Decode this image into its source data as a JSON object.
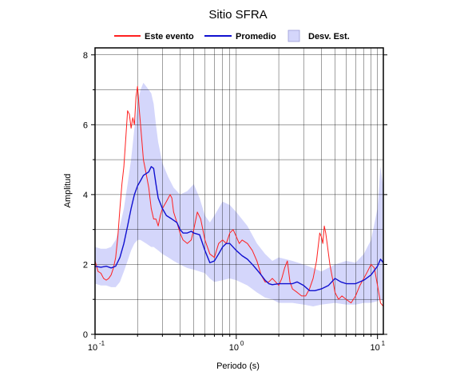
{
  "chart_data": {
    "type": "line",
    "title": "Sitio SFRA",
    "xlabel": "Periodo (s)",
    "ylabel": "Amplitud",
    "x_scale": "log",
    "xlim": [
      0.1,
      11
    ],
    "ylim": [
      0,
      8.2
    ],
    "x_ticks": [
      {
        "value": 0.1,
        "base": "10",
        "exp": "-1"
      },
      {
        "value": 1,
        "base": "10",
        "exp": "0"
      },
      {
        "value": 10,
        "base": "10",
        "exp": "1"
      }
    ],
    "y_ticks": [
      0,
      2,
      4,
      6,
      8
    ],
    "grid": true,
    "legend_position": "top",
    "legend": [
      "Este evento",
      "Promedio",
      "Desv. Est."
    ],
    "colors": {
      "event": "#ff2020",
      "mean": "#1010d0",
      "band": "#d4d6fb"
    },
    "series": [
      {
        "name": "Este evento",
        "x": [
          0.1,
          0.105,
          0.11,
          0.115,
          0.12,
          0.125,
          0.13,
          0.135,
          0.14,
          0.145,
          0.15,
          0.155,
          0.16,
          0.165,
          0.17,
          0.175,
          0.18,
          0.185,
          0.19,
          0.195,
          0.2,
          0.205,
          0.21,
          0.215,
          0.22,
          0.225,
          0.23,
          0.235,
          0.24,
          0.25,
          0.26,
          0.27,
          0.28,
          0.29,
          0.3,
          0.32,
          0.34,
          0.35,
          0.36,
          0.38,
          0.4,
          0.42,
          0.45,
          0.48,
          0.5,
          0.53,
          0.56,
          0.6,
          0.65,
          0.7,
          0.75,
          0.8,
          0.85,
          0.9,
          0.95,
          1.0,
          1.05,
          1.1,
          1.2,
          1.3,
          1.4,
          1.5,
          1.6,
          1.7,
          1.8,
          1.9,
          2.0,
          2.1,
          2.2,
          2.3,
          2.4,
          2.5,
          2.7,
          2.9,
          3.1,
          3.3,
          3.5,
          3.7,
          3.9,
          4.0,
          4.1,
          4.2,
          4.3,
          4.4,
          4.6,
          4.8,
          5.0,
          5.3,
          5.6,
          6.0,
          6.5,
          7.0,
          7.5,
          8.0,
          8.5,
          9.0,
          9.5,
          10.0,
          10.5,
          11.0
        ],
        "y": [
          2.1,
          1.8,
          1.75,
          1.6,
          1.55,
          1.6,
          1.7,
          1.9,
          2.2,
          2.8,
          3.6,
          4.3,
          4.8,
          5.6,
          6.4,
          6.3,
          5.9,
          6.2,
          6.0,
          6.8,
          7.1,
          6.5,
          6.0,
          5.5,
          5.0,
          4.8,
          4.6,
          4.4,
          4.2,
          3.6,
          3.3,
          3.3,
          3.1,
          3.4,
          3.6,
          3.8,
          4.0,
          3.9,
          3.5,
          3.2,
          2.9,
          2.7,
          2.6,
          2.7,
          3.0,
          3.5,
          3.3,
          2.7,
          2.3,
          2.2,
          2.6,
          2.7,
          2.6,
          2.9,
          3.0,
          2.8,
          2.6,
          2.7,
          2.6,
          2.4,
          2.1,
          1.7,
          1.5,
          1.5,
          1.6,
          1.5,
          1.4,
          1.6,
          1.9,
          2.1,
          1.5,
          1.3,
          1.2,
          1.1,
          1.1,
          1.3,
          1.6,
          2.1,
          2.9,
          2.8,
          2.6,
          3.1,
          2.9,
          2.6,
          2.0,
          1.6,
          1.2,
          1.0,
          1.1,
          1.0,
          0.9,
          1.1,
          1.4,
          1.6,
          1.8,
          2.0,
          1.9,
          1.4,
          0.9,
          0.8
        ]
      },
      {
        "name": "Promedio",
        "x": [
          0.1,
          0.11,
          0.12,
          0.13,
          0.14,
          0.15,
          0.16,
          0.17,
          0.18,
          0.19,
          0.2,
          0.21,
          0.22,
          0.23,
          0.24,
          0.25,
          0.26,
          0.27,
          0.28,
          0.3,
          0.32,
          0.35,
          0.38,
          0.4,
          0.42,
          0.45,
          0.48,
          0.5,
          0.55,
          0.6,
          0.65,
          0.7,
          0.75,
          0.8,
          0.85,
          0.9,
          1.0,
          1.1,
          1.2,
          1.3,
          1.4,
          1.5,
          1.6,
          1.7,
          1.8,
          2.0,
          2.2,
          2.5,
          2.7,
          3.0,
          3.3,
          3.6,
          4.0,
          4.5,
          5.0,
          5.5,
          6.0,
          7.0,
          8.0,
          9.0,
          10.0,
          10.5,
          11.0
        ],
        "y": [
          1.95,
          1.92,
          1.95,
          1.9,
          1.95,
          2.2,
          2.6,
          3.1,
          3.6,
          4.0,
          4.25,
          4.4,
          4.55,
          4.6,
          4.65,
          4.8,
          4.75,
          4.3,
          3.9,
          3.6,
          3.4,
          3.3,
          3.2,
          3.0,
          2.9,
          2.9,
          2.95,
          2.9,
          2.85,
          2.4,
          2.05,
          2.1,
          2.3,
          2.5,
          2.6,
          2.6,
          2.4,
          2.25,
          2.15,
          2.0,
          1.85,
          1.7,
          1.55,
          1.45,
          1.42,
          1.45,
          1.45,
          1.45,
          1.5,
          1.4,
          1.25,
          1.25,
          1.3,
          1.4,
          1.6,
          1.5,
          1.45,
          1.45,
          1.55,
          1.7,
          1.95,
          2.15,
          2.05
        ]
      },
      {
        "name": "Desv. Est.",
        "x": [
          0.1,
          0.11,
          0.12,
          0.13,
          0.14,
          0.15,
          0.16,
          0.17,
          0.18,
          0.19,
          0.2,
          0.21,
          0.22,
          0.23,
          0.24,
          0.25,
          0.26,
          0.27,
          0.28,
          0.3,
          0.33,
          0.36,
          0.4,
          0.45,
          0.5,
          0.55,
          0.6,
          0.65,
          0.7,
          0.8,
          0.9,
          1.0,
          1.2,
          1.4,
          1.6,
          1.8,
          2.0,
          2.5,
          3.0,
          3.5,
          4.0,
          5.0,
          6.0,
          7.0,
          8.0,
          9.0,
          10.0,
          10.5,
          11.0
        ],
        "upper": [
          2.5,
          2.45,
          2.45,
          2.5,
          2.7,
          3.1,
          3.6,
          4.3,
          5.0,
          5.9,
          6.6,
          7.0,
          7.2,
          7.1,
          7.0,
          6.9,
          6.6,
          6.0,
          5.5,
          4.9,
          4.5,
          4.2,
          4.0,
          4.1,
          4.3,
          3.9,
          3.4,
          3.2,
          3.4,
          3.8,
          3.7,
          3.5,
          3.1,
          2.6,
          2.3,
          2.1,
          2.2,
          2.1,
          2.0,
          1.9,
          1.8,
          2.0,
          2.1,
          2.05,
          2.3,
          2.7,
          3.6,
          4.8,
          4.2
        ],
        "lower": [
          1.45,
          1.4,
          1.4,
          1.35,
          1.35,
          1.5,
          1.8,
          2.1,
          2.4,
          2.6,
          2.7,
          2.7,
          2.65,
          2.6,
          2.55,
          2.5,
          2.5,
          2.45,
          2.4,
          2.3,
          2.2,
          2.1,
          2.0,
          1.9,
          1.85,
          1.8,
          1.75,
          1.6,
          1.5,
          1.55,
          1.6,
          1.55,
          1.4,
          1.2,
          1.05,
          1.0,
          0.9,
          0.9,
          0.85,
          0.8,
          0.85,
          0.9,
          0.85,
          0.85,
          0.9,
          0.9,
          0.95,
          1.0,
          0.95
        ]
      }
    ]
  }
}
